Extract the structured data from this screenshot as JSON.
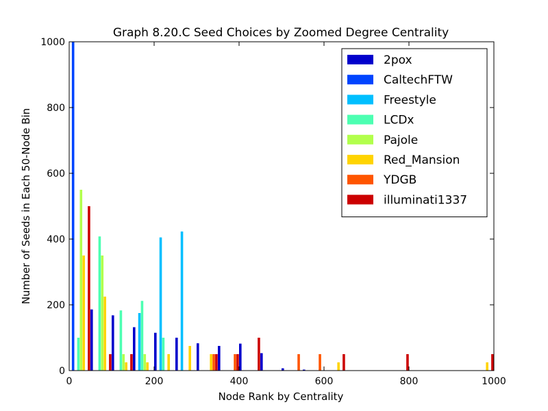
{
  "chart_data": {
    "type": "bar",
    "title": "Graph 8.20.C Seed Choices by Zoomed Degree Centrality",
    "xlabel": "Node Rank by Centrality",
    "ylabel": "Number of Seeds in Each 50-Node Bin",
    "xlim": [
      0,
      1000
    ],
    "ylim": [
      0,
      1000
    ],
    "xticks": [
      "0",
      "200",
      "400",
      "600",
      "800",
      "1000"
    ],
    "yticks": [
      "0",
      "200",
      "400",
      "600",
      "800",
      "1000"
    ],
    "bin_width": 50,
    "grid": false,
    "legend_position": "top-right",
    "series": [
      {
        "name": "2pox",
        "color": "#0000cc",
        "bins": [
          0,
          50,
          100,
          150,
          200,
          250,
          300,
          350,
          400,
          450,
          500,
          550
        ],
        "values": [
          0,
          186,
          168,
          132,
          115,
          100,
          83,
          75,
          82,
          53,
          7,
          3
        ]
      },
      {
        "name": "CaltechFTW",
        "color": "#0044ff",
        "bins": [
          0
        ],
        "values": [
          1000
        ]
      },
      {
        "name": "Freestyle",
        "color": "#00bfff",
        "bins": [
          150,
          200,
          250
        ],
        "values": [
          175,
          405,
          423
        ]
      },
      {
        "name": "LCDx",
        "color": "#4cffb2",
        "bins": [
          0,
          50,
          100,
          150,
          200
        ],
        "values": [
          100,
          408,
          183,
          212,
          100
        ]
      },
      {
        "name": "Pajole",
        "color": "#b2ff4c",
        "bins": [
          0,
          50,
          100,
          150
        ],
        "values": [
          550,
          350,
          50,
          50
        ]
      },
      {
        "name": "Red_Mansion",
        "color": "#ffd400",
        "bins": [
          0,
          50,
          100,
          150,
          200,
          250,
          300,
          600,
          950
        ],
        "values": [
          350,
          225,
          25,
          25,
          50,
          75,
          50,
          25,
          25
        ]
      },
      {
        "name": "YDGB",
        "color": "#ff5500",
        "bins": [
          300,
          350,
          500,
          550
        ],
        "values": [
          50,
          50,
          50,
          50
        ]
      },
      {
        "name": "illuminati1337",
        "color": "#cc0000",
        "bins": [
          0,
          50,
          100,
          300,
          350,
          400,
          600,
          750,
          950
        ],
        "values": [
          500,
          50,
          50,
          50,
          50,
          100,
          50,
          50,
          50
        ]
      }
    ]
  }
}
